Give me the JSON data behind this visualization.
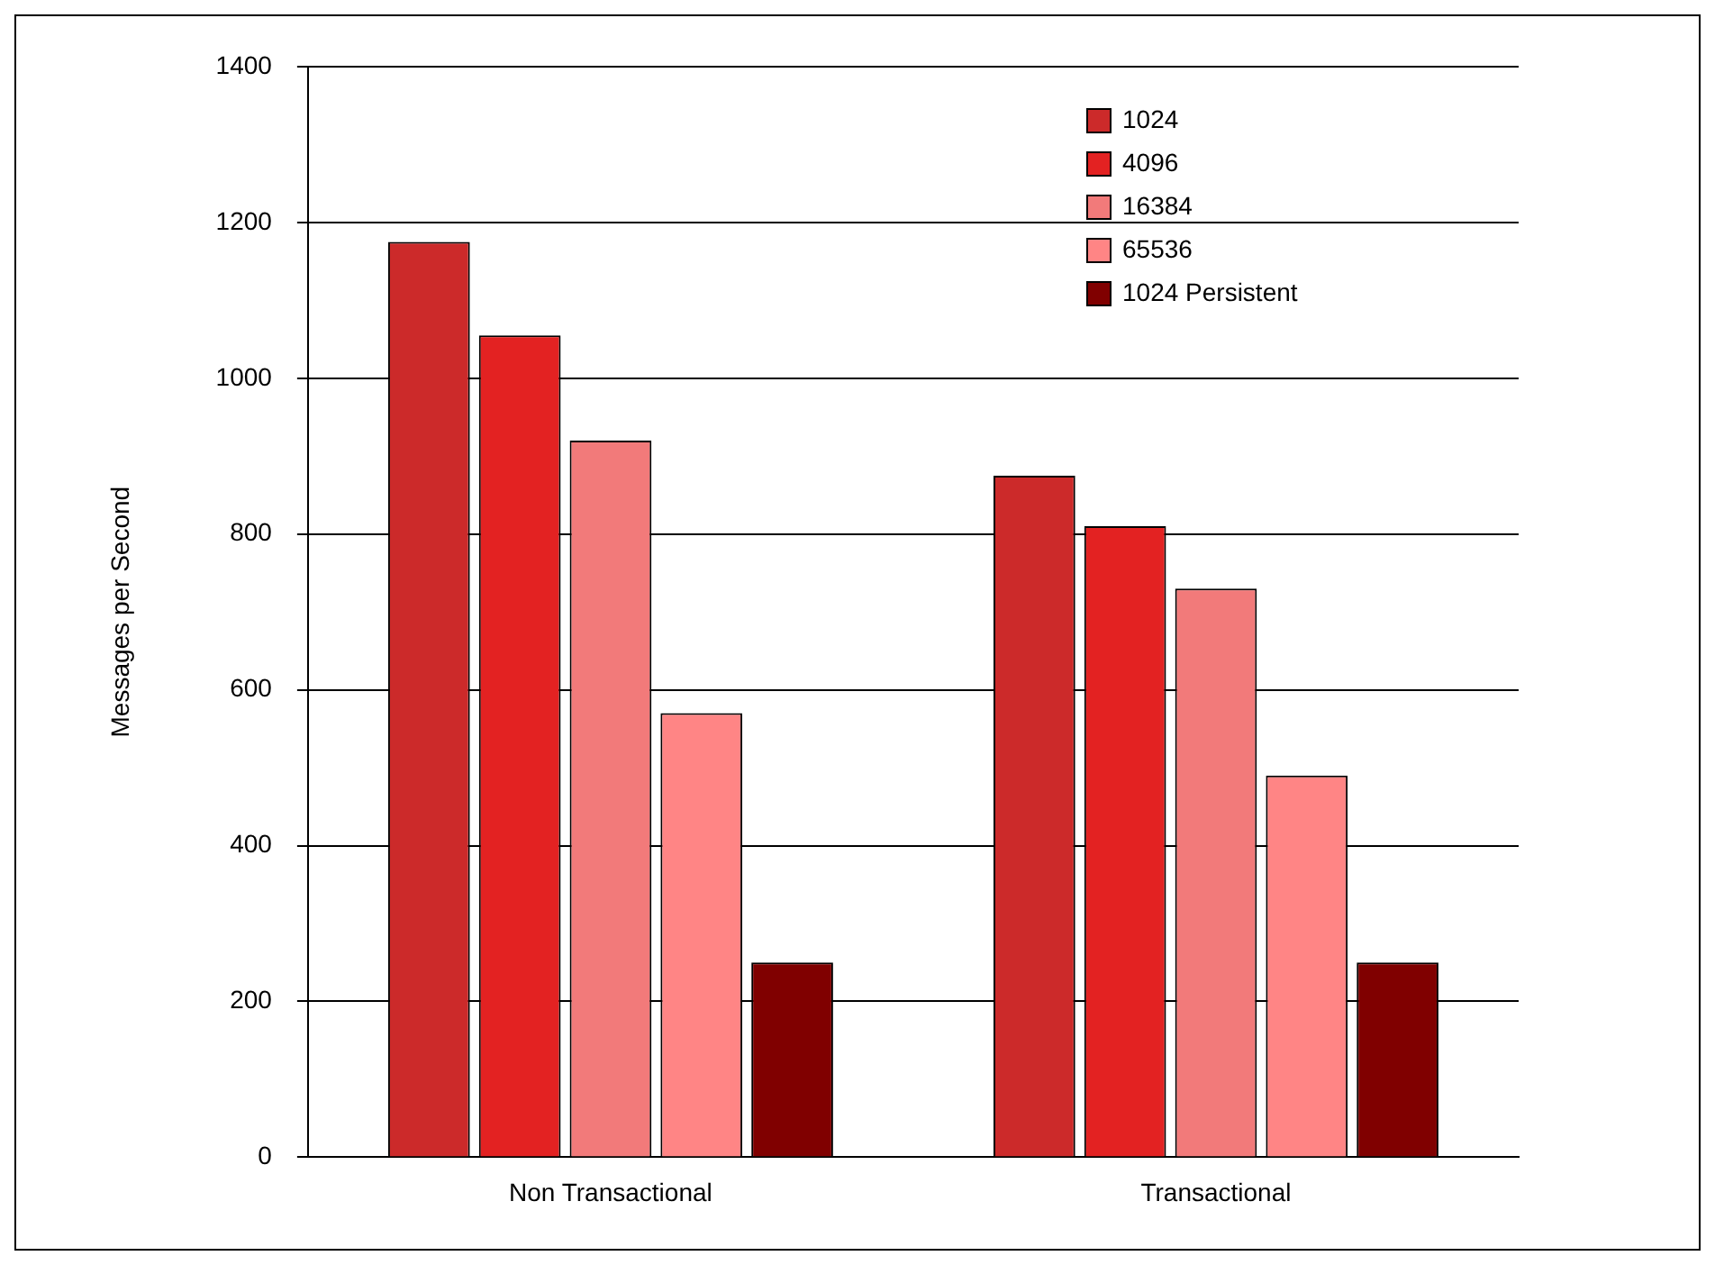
{
  "chart_data": {
    "type": "bar",
    "ylabel": "Messages per Second",
    "categories": [
      "Non Transactional",
      "Transactional"
    ],
    "series": [
      {
        "name": "1024",
        "color": "#cc2a2a",
        "values": [
          1175,
          875
        ]
      },
      {
        "name": "4096",
        "color": "#e32222",
        "values": [
          1055,
          810
        ]
      },
      {
        "name": "16384",
        "color": "#f27a7a",
        "values": [
          920,
          730
        ]
      },
      {
        "name": "65536",
        "color": "#ff8585",
        "values": [
          570,
          490
        ]
      },
      {
        "name": "1024 Persistent",
        "color": "#800000",
        "values": [
          250,
          250
        ]
      }
    ],
    "ylim": [
      0,
      1400
    ],
    "yticks": [
      0,
      200,
      400,
      600,
      800,
      1000,
      1200,
      1400
    ],
    "grid": "y",
    "legend": "top right"
  }
}
